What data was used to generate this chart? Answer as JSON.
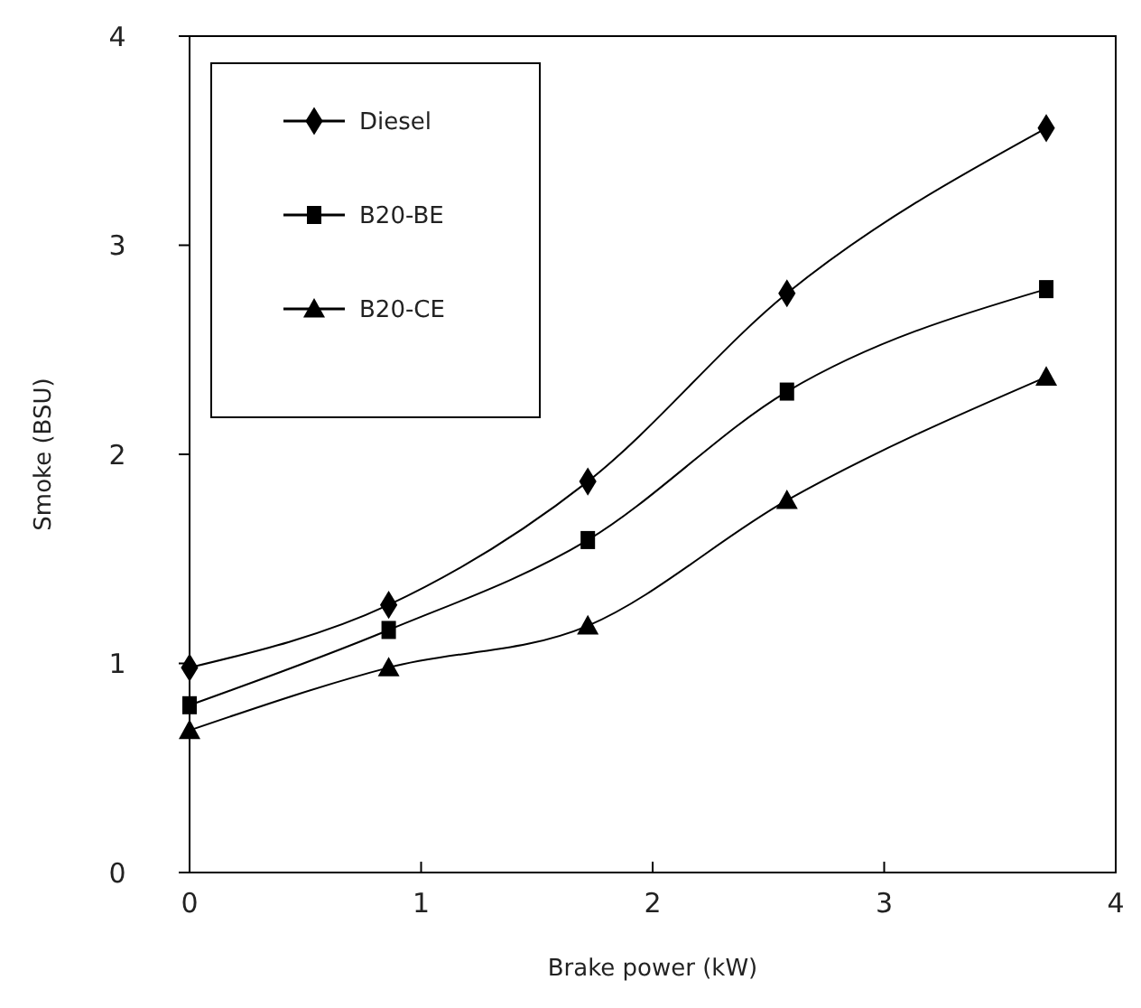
{
  "chart_data": {
    "type": "line",
    "xlabel": "Brake power (kW)",
    "ylabel": "Smoke (BSU)",
    "x": [
      0,
      0.86,
      1.72,
      2.58,
      3.7
    ],
    "series": [
      {
        "name": "Diesel",
        "color": "#000000",
        "marker": "diamond",
        "values": [
          0.98,
          1.28,
          1.87,
          2.77,
          3.56
        ]
      },
      {
        "name": "B20-BE",
        "color": "#000000",
        "marker": "square",
        "values": [
          0.8,
          1.16,
          1.59,
          2.3,
          2.79
        ]
      },
      {
        "name": "B20-CE",
        "color": "#000000",
        "marker": "triangle",
        "values": [
          0.68,
          0.98,
          1.18,
          1.78,
          2.37
        ]
      }
    ],
    "xlim": [
      0,
      4
    ],
    "xticks": [
      0,
      1,
      2,
      3,
      4
    ],
    "ylim": [
      0,
      4
    ],
    "yticks": [
      0,
      1,
      2,
      3,
      4
    ],
    "grid": false,
    "legend": "top left",
    "line_style": "solid"
  }
}
